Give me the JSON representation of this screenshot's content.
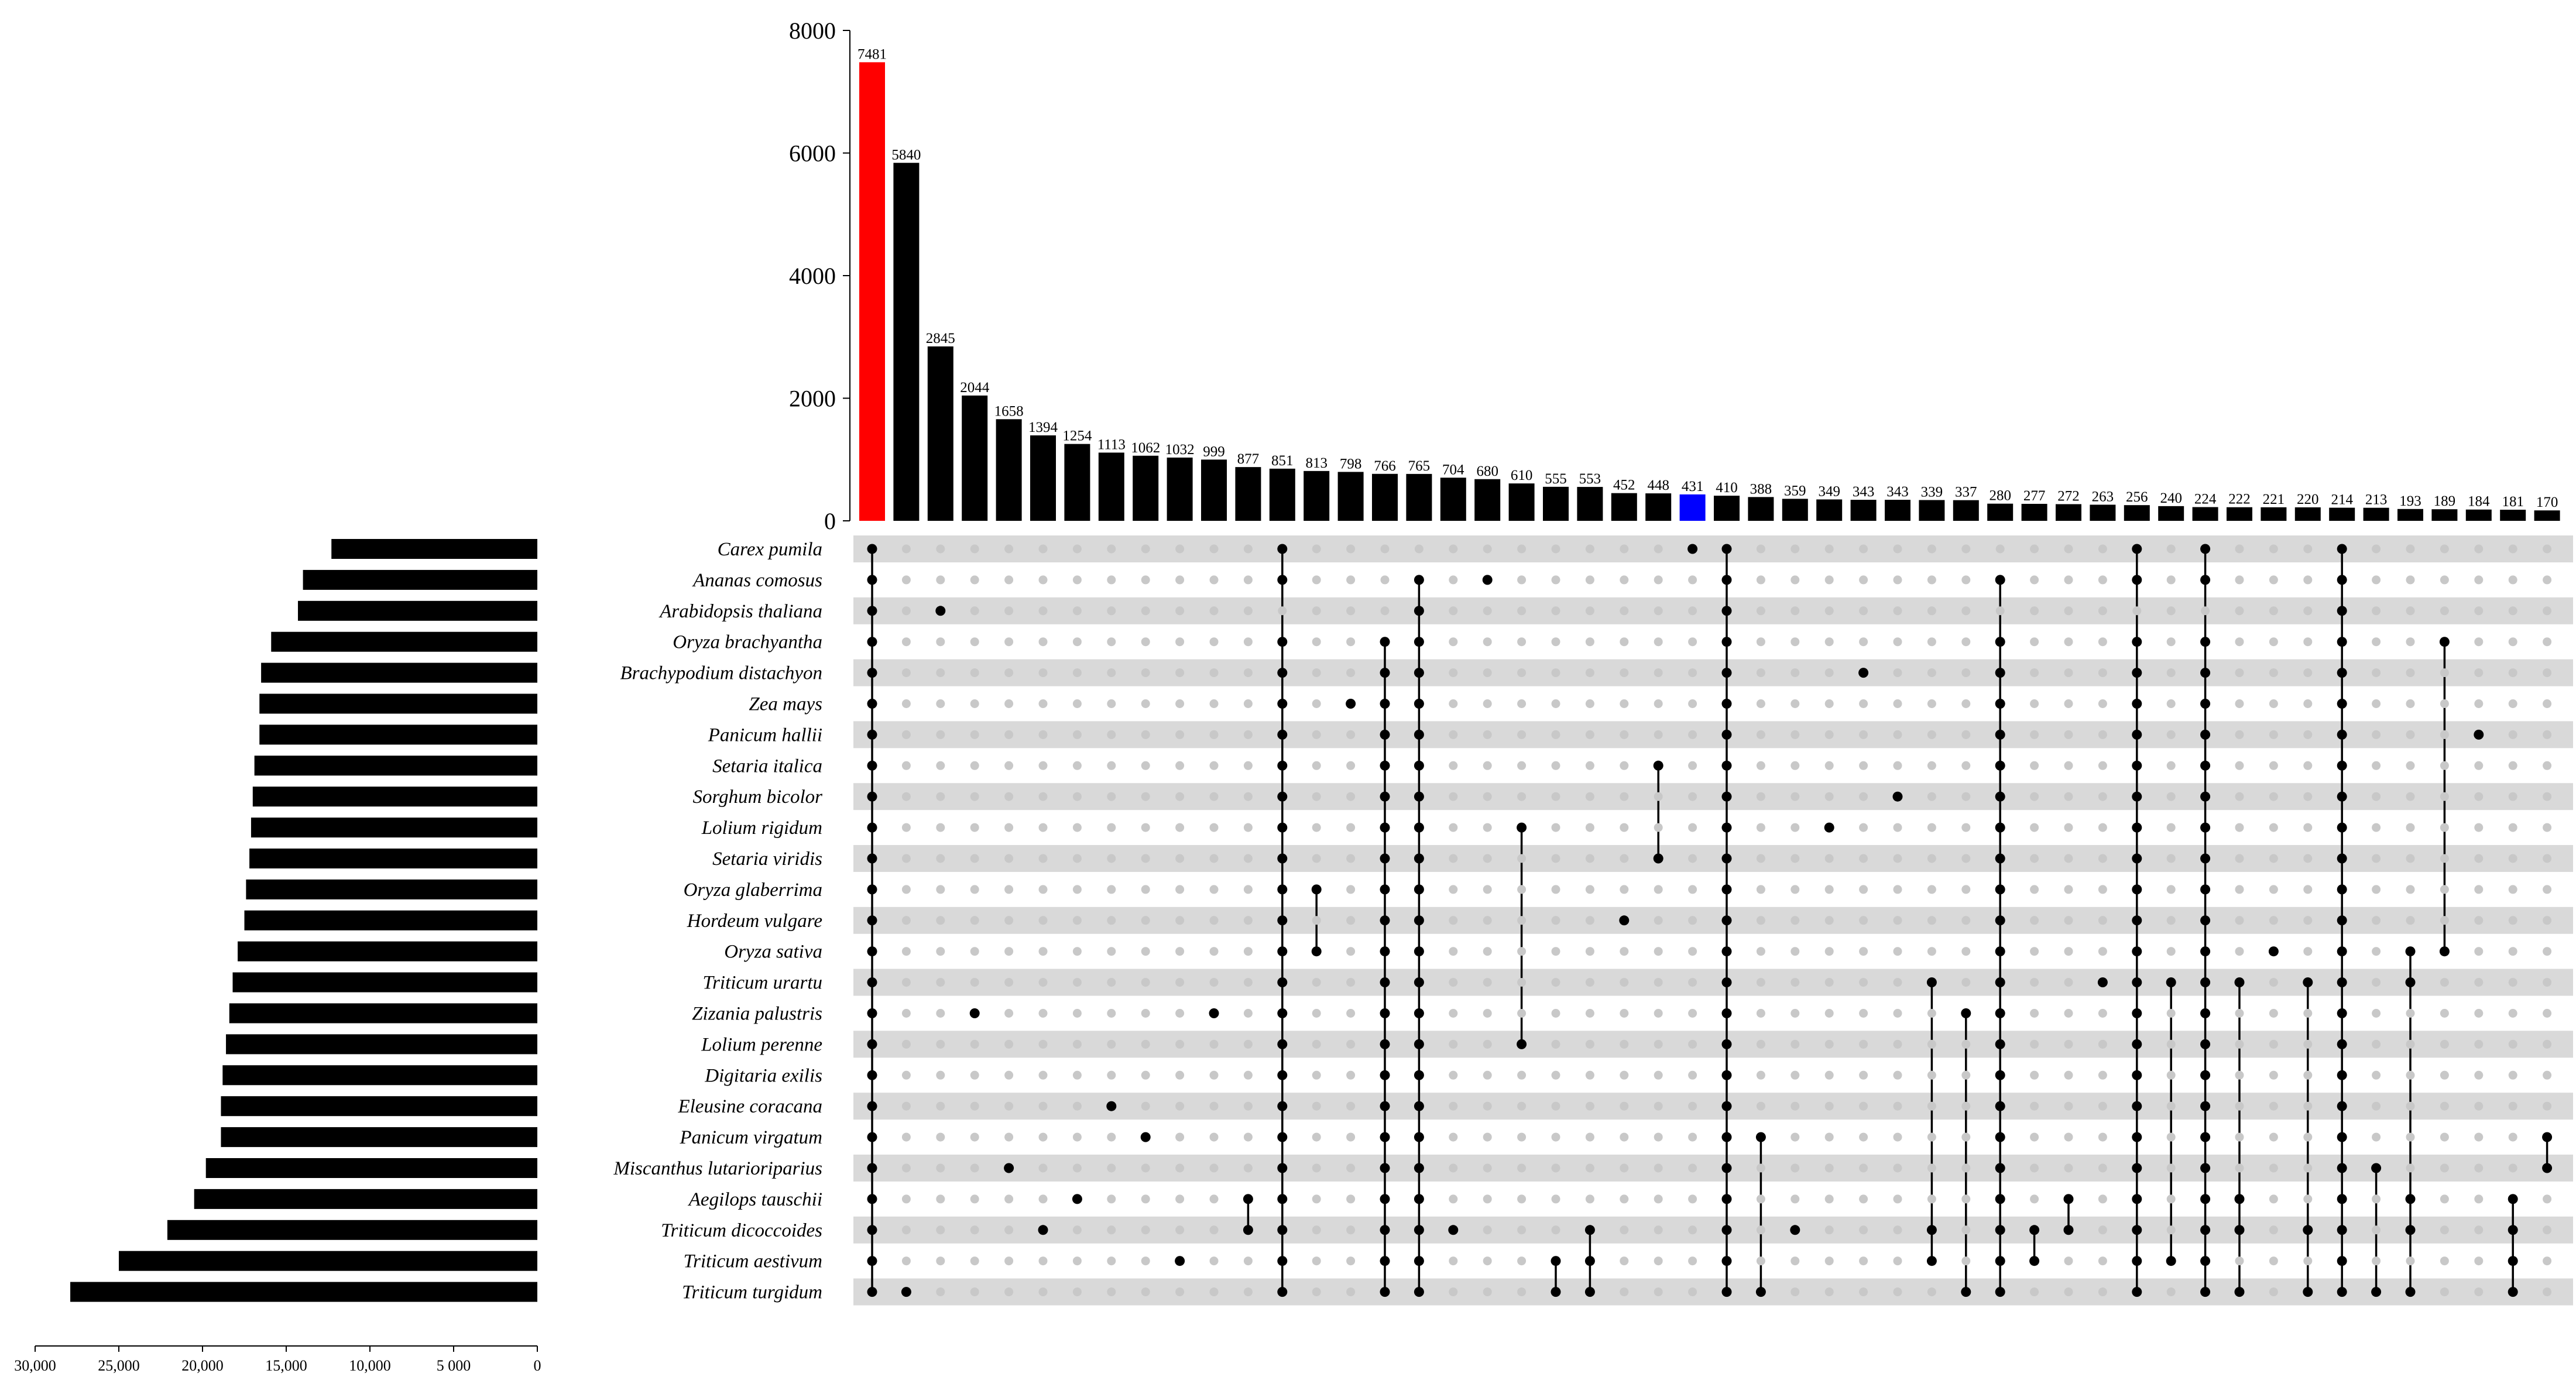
{
  "chart_data": {
    "type": "bar",
    "title": "",
    "colors": {
      "highlight_first": "#ff0000",
      "highlight_blue": "#0000ff",
      "bar": "#000000",
      "row_shade": "#d9d9d9",
      "dot_inactive": "#c8c8c8",
      "dot_active": "#000000"
    },
    "intersections": {
      "ylim": [
        0,
        8000
      ],
      "yticks": [
        0,
        2000,
        4000,
        6000,
        8000
      ],
      "ytick_labels": [
        "0",
        "2000",
        "4000",
        "6000",
        "8000"
      ],
      "values": [
        7481,
        5840,
        2845,
        2044,
        1658,
        1394,
        1254,
        1113,
        1062,
        1032,
        999,
        877,
        851,
        813,
        798,
        766,
        765,
        704,
        680,
        610,
        555,
        553,
        452,
        448,
        431,
        410,
        388,
        359,
        349,
        343,
        343,
        339,
        337,
        280,
        277,
        272,
        263,
        256,
        240,
        224,
        222,
        221,
        220,
        214,
        213,
        193,
        189,
        184,
        181,
        170
      ],
      "value_labels": [
        "7481",
        "5840",
        "2845",
        "2044",
        "1658",
        "1394",
        "1254",
        "1113",
        "1062",
        "1032",
        "999",
        "877",
        "851",
        "813",
        "798",
        "766",
        "765",
        "704",
        "680",
        "610",
        "555",
        "553",
        "452",
        "448",
        "431",
        "410",
        "388",
        "359",
        "349",
        "343",
        "343",
        "339",
        "337",
        "280",
        "277",
        "272",
        "263",
        "256",
        "240",
        "224",
        "222",
        "221",
        "220",
        "214",
        "213",
        "193",
        "189",
        "184",
        "181",
        "170"
      ],
      "highlight_red_index": 0,
      "highlight_blue_index": 24,
      "memberships": [
        [
          0,
          1,
          2,
          3,
          4,
          5,
          6,
          7,
          8,
          9,
          10,
          11,
          12,
          13,
          14,
          15,
          16,
          17,
          18,
          19,
          20,
          21,
          22,
          23,
          24
        ],
        [
          24
        ],
        [
          2
        ],
        [
          15
        ],
        [
          20
        ],
        [
          22
        ],
        [
          21
        ],
        [
          18
        ],
        [
          19
        ],
        [
          23
        ],
        [
          15
        ],
        [
          21,
          22
        ],
        [
          0,
          1,
          3,
          4,
          5,
          6,
          7,
          8,
          9,
          10,
          11,
          12,
          13,
          14,
          15,
          16,
          17,
          18,
          19,
          20,
          21,
          22,
          23,
          24
        ],
        [
          11,
          13
        ],
        [
          5
        ],
        [
          3,
          4,
          5,
          6,
          7,
          8,
          9,
          10,
          11,
          12,
          13,
          14,
          15,
          16,
          17,
          18,
          19,
          20,
          21,
          22,
          23,
          24
        ],
        [
          1,
          2,
          3,
          4,
          5,
          6,
          7,
          8,
          9,
          10,
          11,
          12,
          13,
          14,
          15,
          16,
          17,
          18,
          19,
          20,
          21,
          22,
          23,
          24
        ],
        [
          22
        ],
        [
          1
        ],
        [
          9,
          16
        ],
        [
          23,
          24
        ],
        [
          22,
          23,
          24
        ],
        [
          12
        ],
        [
          7,
          10
        ],
        [
          0
        ],
        [
          0,
          1,
          2,
          3,
          4,
          5,
          6,
          7,
          8,
          9,
          10,
          11,
          12,
          13,
          14,
          15,
          16,
          17,
          18,
          19,
          20,
          21,
          22,
          23,
          24
        ],
        [
          19,
          24
        ],
        [
          22
        ],
        [
          9
        ],
        [
          4
        ],
        [
          8
        ],
        [
          14,
          22,
          23
        ],
        [
          15,
          24
        ],
        [
          1,
          3,
          4,
          5,
          6,
          7,
          8,
          9,
          10,
          11,
          12,
          13,
          14,
          15,
          16,
          17,
          18,
          19,
          20,
          21,
          22,
          23,
          24
        ],
        [
          22,
          23
        ],
        [
          21,
          22
        ],
        [
          14
        ],
        [
          0,
          1,
          3,
          4,
          5,
          6,
          7,
          8,
          9,
          10,
          11,
          12,
          13,
          14,
          15,
          16,
          17,
          18,
          19,
          20,
          21,
          22,
          23,
          24
        ],
        [
          14,
          23
        ],
        [
          0,
          1,
          3,
          4,
          5,
          6,
          7,
          8,
          9,
          10,
          11,
          12,
          13,
          14,
          15,
          16,
          17,
          18,
          19,
          20,
          21,
          22,
          23,
          24
        ],
        [
          14,
          21,
          22,
          24
        ],
        [
          13
        ],
        [
          14,
          22,
          24
        ],
        [
          0,
          1,
          2,
          3,
          4,
          5,
          6,
          7,
          8,
          9,
          10,
          11,
          12,
          13,
          14,
          15,
          16,
          17,
          18,
          19,
          20,
          21,
          22,
          23,
          24
        ],
        [
          20,
          24
        ],
        [
          13,
          14,
          21,
          22,
          24
        ],
        [
          3,
          13
        ],
        [
          6
        ],
        [
          21,
          22,
          23,
          24
        ],
        [
          19,
          20
        ]
      ]
    },
    "set_sizes": {
      "sets": [
        "Carex pumila",
        "Ananas comosus",
        "Arabidopsis thaliana",
        "Oryza brachyantha",
        "Brachypodium distachyon",
        "Zea mays",
        "Panicum hallii",
        "Setaria italica",
        "Sorghum bicolor",
        "Lolium rigidum",
        "Setaria viridis",
        "Oryza glaberrima",
        "Hordeum vulgare",
        "Oryza sativa",
        "Triticum urartu",
        "Zizania palustris",
        "Lolium perenne",
        "Digitaria exilis",
        "Eleusine coracana",
        "Panicum virgatum",
        "Miscanthus lutarioriparius",
        "Aegilops tauschii",
        "Triticum dicoccoides",
        "Triticum aestivum",
        "Triticum turgidum"
      ],
      "values": [
        12300,
        14000,
        14300,
        15900,
        16500,
        16600,
        16600,
        16900,
        17000,
        17100,
        17200,
        17400,
        17500,
        17900,
        18200,
        18400,
        18600,
        18800,
        18900,
        18900,
        19800,
        20500,
        22100,
        25000,
        27900
      ],
      "xlim": [
        30000,
        0
      ],
      "xticks": [
        30000,
        25000,
        20000,
        15000,
        10000,
        5000,
        0
      ],
      "xtick_labels": [
        "30,000",
        "25,000",
        "20,000",
        "15,000",
        "10,000",
        "5 000",
        "0"
      ]
    }
  }
}
